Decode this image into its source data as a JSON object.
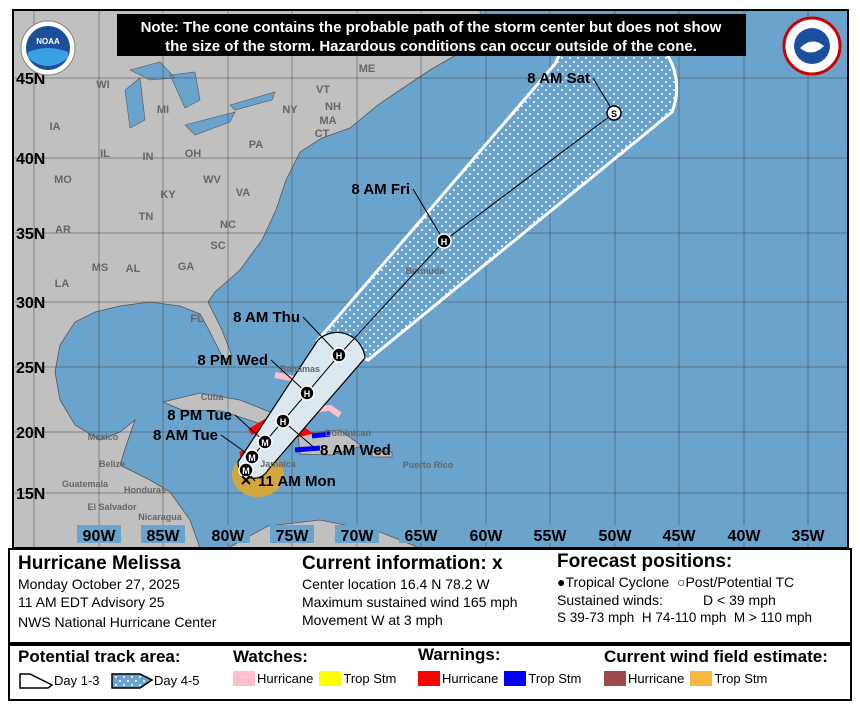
{
  "note": [
    "Note: The cone contains the probable path of the storm center but does not show",
    "the size of the storm. Hazardous conditions can occur outside of the cone."
  ],
  "logos": {
    "left": "NOAA",
    "right": "NATIONAL WEATHER SERVICE"
  },
  "lat_labels": [
    "45N",
    "40N",
    "35N",
    "30N",
    "25N",
    "20N",
    "15N"
  ],
  "lon_labels": [
    "90W",
    "85W",
    "80W",
    "75W",
    "70W",
    "65W",
    "60W",
    "55W",
    "50W",
    "45W",
    "40W",
    "35W"
  ],
  "place_labels": [
    "WI",
    "MI",
    "IA",
    "IL",
    "IN",
    "OH",
    "PA",
    "NY",
    "ME",
    "VT",
    "NH",
    "MA",
    "CT",
    "MO",
    "KY",
    "WV",
    "VA",
    "TN",
    "NC",
    "SC",
    "AR",
    "MS",
    "AL",
    "GA",
    "LA",
    "FL",
    "Mexico",
    "Belize",
    "Guatemala",
    "Honduras",
    "El Salvador",
    "Nicaragua",
    "Cuba",
    "Bahamas",
    "Jamaica",
    "Dominican",
    "Puerto Rico",
    "Bermuda"
  ],
  "track": [
    {
      "label": "11 AM Mon",
      "symbol": "M",
      "current": true
    },
    {
      "label": "8 AM Tue",
      "symbol": "M"
    },
    {
      "label": "8 PM Tue",
      "symbol": "M"
    },
    {
      "label": "8 AM Wed",
      "symbol": "H"
    },
    {
      "label": "8 PM Wed",
      "symbol": "H"
    },
    {
      "label": "8 AM Thu",
      "symbol": "H"
    },
    {
      "label": "8 AM Fri",
      "symbol": "H"
    },
    {
      "label": "8 AM Sat",
      "symbol": "S"
    }
  ],
  "info": {
    "storm_name": "Hurricane Melissa",
    "date": "Monday October 27, 2025",
    "advisory": "11 AM EDT Advisory 25",
    "agency": "NWS National Hurricane Center",
    "current_title": "Current information: x",
    "center": "Center location 16.4 N 78.2 W",
    "max_wind": "Maximum sustained wind 165 mph",
    "movement": "Movement W at 3 mph",
    "forecast_title": "Forecast positions:",
    "tc": "Tropical Cyclone",
    "post_tc": "Post/Potential TC",
    "sustained": "Sustained winds:",
    "d": "D < 39 mph",
    "s": "S 39-73 mph",
    "hh": "H 74-110 mph",
    "m": "M > 110 mph"
  },
  "legend": {
    "track_title": "Potential track area:",
    "day13": "Day 1-3",
    "day45": "Day 4-5",
    "watches_title": "Watches:",
    "warnings_title": "Warnings:",
    "wind_title": "Current wind field estimate:",
    "hurricane": "Hurricane",
    "tropstm": "Trop Stm"
  },
  "colors": {
    "ocean": "#6aa3cc",
    "land": "#c0c0c0",
    "hurricane_watch": "#ffc0cb",
    "ts_watch": "#ffff00",
    "hurricane_warning": "#ff0000",
    "ts_warning": "#0000ff",
    "hurricane_wind": "#9c4a4a",
    "ts_wind": "#f5b942"
  }
}
